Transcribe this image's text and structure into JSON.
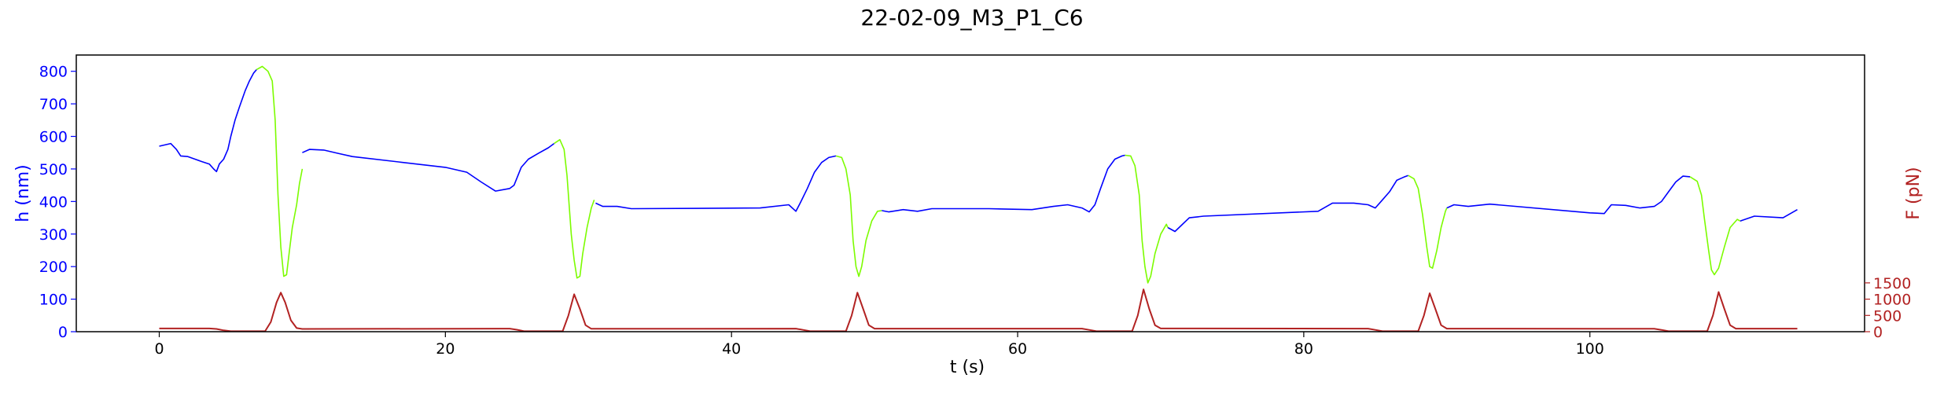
{
  "chart_data": {
    "type": "line",
    "title": "22-02-09_M3_P1_C6",
    "xlabel": "t (s)",
    "ylabel_left": "h (nm)",
    "ylabel_right": "F (pN)",
    "xlim": [
      -5.8,
      119.2
    ],
    "ylim_left": [
      0,
      850
    ],
    "ylim_right": [
      0,
      8500
    ],
    "x_ticks": [
      0,
      20,
      40,
      60,
      80,
      100
    ],
    "y_left_ticks": [
      0,
      100,
      200,
      300,
      400,
      500,
      600,
      700,
      800
    ],
    "y_right_ticks": [
      0,
      500,
      1000,
      1500
    ],
    "colors": {
      "height_series": "#0000ff",
      "compression_series": "#7cfc00",
      "force_series": "#b22222",
      "left_axis": "#0000ff",
      "right_axis": "#b22222"
    },
    "series": [
      {
        "color_key": "height_series",
        "axis": "left",
        "segments": [
          [
            [
              0,
              570
            ],
            [
              0.8,
              578
            ],
            [
              1.2,
              560
            ],
            [
              1.5,
              540
            ],
            [
              2.0,
              538
            ],
            [
              2.5,
              530
            ],
            [
              3.0,
              522
            ],
            [
              3.5,
              515
            ],
            [
              3.8,
              500
            ],
            [
              4.0,
              492
            ],
            [
              4.2,
              515
            ],
            [
              4.5,
              530
            ],
            [
              4.8,
              560
            ],
            [
              5.0,
              600
            ],
            [
              5.3,
              650
            ],
            [
              5.6,
              690
            ],
            [
              6.0,
              740
            ],
            [
              6.3,
              770
            ],
            [
              6.6,
              795
            ],
            [
              6.8,
              805
            ]
          ],
          [
            [
              10,
              550
            ],
            [
              10.5,
              560
            ],
            [
              11.5,
              558
            ],
            [
              12.5,
              548
            ],
            [
              13.5,
              538
            ],
            [
              20,
              505
            ],
            [
              21.5,
              490
            ],
            [
              22.5,
              460
            ],
            [
              23.5,
              432
            ],
            [
              24.5,
              440
            ],
            [
              24.8,
              450
            ],
            [
              25.3,
              505
            ],
            [
              25.8,
              530
            ],
            [
              26.5,
              548
            ],
            [
              27.2,
              565
            ],
            [
              27.6,
              578
            ]
          ],
          [
            [
              30.5,
              395
            ],
            [
              31,
              385
            ],
            [
              32,
              385
            ],
            [
              33,
              378
            ],
            [
              42,
              380
            ],
            [
              44,
              390
            ],
            [
              44.5,
              370
            ],
            [
              44.8,
              395
            ],
            [
              45.3,
              440
            ],
            [
              45.8,
              490
            ],
            [
              46.3,
              520
            ],
            [
              46.8,
              535
            ],
            [
              47.3,
              540
            ]
          ],
          [
            [
              50.5,
              372
            ],
            [
              51,
              368
            ],
            [
              52,
              375
            ],
            [
              53,
              370
            ],
            [
              54,
              378
            ],
            [
              58,
              378
            ],
            [
              61,
              375
            ],
            [
              62.5,
              385
            ],
            [
              63.5,
              390
            ],
            [
              64.5,
              380
            ],
            [
              65,
              368
            ],
            [
              65.4,
              390
            ],
            [
              65.8,
              440
            ],
            [
              66.3,
              500
            ],
            [
              66.8,
              530
            ],
            [
              67.3,
              540
            ],
            [
              67.5,
              542
            ]
          ],
          [
            [
              70.5,
              320
            ],
            [
              71,
              308
            ],
            [
              72,
              350
            ],
            [
              73,
              355
            ],
            [
              81,
              370
            ],
            [
              82,
              395
            ],
            [
              83.5,
              395
            ],
            [
              84.5,
              390
            ],
            [
              85,
              380
            ],
            [
              85.5,
              405
            ],
            [
              86,
              430
            ],
            [
              86.5,
              465
            ],
            [
              87,
              475
            ],
            [
              87.3,
              480
            ]
          ],
          [
            [
              90,
              380
            ],
            [
              90.5,
              390
            ],
            [
              91.5,
              385
            ],
            [
              93,
              392
            ],
            [
              100,
              365
            ],
            [
              101,
              363
            ],
            [
              101.5,
              390
            ],
            [
              102.5,
              388
            ],
            [
              103.5,
              380
            ],
            [
              104.5,
              385
            ],
            [
              105,
              400
            ],
            [
              105.5,
              430
            ],
            [
              106,
              460
            ],
            [
              106.5,
              478
            ],
            [
              107,
              476
            ]
          ],
          [
            [
              110.5,
              340
            ],
            [
              111.5,
              355
            ],
            [
              113.5,
              350
            ],
            [
              114.5,
              375
            ]
          ]
        ]
      },
      {
        "color_key": "compression_series",
        "axis": "left",
        "segments": [
          [
            [
              6.8,
              805
            ],
            [
              7.2,
              815
            ],
            [
              7.6,
              800
            ],
            [
              7.9,
              770
            ],
            [
              8.1,
              650
            ],
            [
              8.3,
              420
            ],
            [
              8.5,
              260
            ],
            [
              8.7,
              170
            ],
            [
              8.9,
              175
            ],
            [
              9.1,
              250
            ],
            [
              9.3,
              320
            ],
            [
              9.6,
              390
            ],
            [
              9.8,
              455
            ],
            [
              10,
              500
            ]
          ],
          [
            [
              27.6,
              578
            ],
            [
              28.0,
              590
            ],
            [
              28.3,
              560
            ],
            [
              28.5,
              480
            ],
            [
              28.8,
              300
            ],
            [
              29.0,
              220
            ],
            [
              29.2,
              165
            ],
            [
              29.4,
              170
            ],
            [
              29.6,
              240
            ],
            [
              29.9,
              320
            ],
            [
              30.2,
              380
            ],
            [
              30.4,
              405
            ]
          ],
          [
            [
              47.3,
              540
            ],
            [
              47.7,
              535
            ],
            [
              48.0,
              500
            ],
            [
              48.3,
              420
            ],
            [
              48.5,
              280
            ],
            [
              48.7,
              200
            ],
            [
              48.9,
              170
            ],
            [
              49.1,
              200
            ],
            [
              49.4,
              280
            ],
            [
              49.8,
              340
            ],
            [
              50.2,
              370
            ],
            [
              50.5,
              372
            ]
          ],
          [
            [
              67.5,
              542
            ],
            [
              67.9,
              540
            ],
            [
              68.2,
              510
            ],
            [
              68.5,
              420
            ],
            [
              68.7,
              280
            ],
            [
              68.9,
              200
            ],
            [
              69.1,
              150
            ],
            [
              69.3,
              170
            ],
            [
              69.6,
              240
            ],
            [
              70.0,
              300
            ],
            [
              70.4,
              330
            ],
            [
              70.5,
              320
            ]
          ],
          [
            [
              87.3,
              480
            ],
            [
              87.7,
              470
            ],
            [
              88.0,
              440
            ],
            [
              88.3,
              360
            ],
            [
              88.6,
              260
            ],
            [
              88.8,
              200
            ],
            [
              89.0,
              195
            ],
            [
              89.3,
              250
            ],
            [
              89.6,
              320
            ],
            [
              89.9,
              370
            ],
            [
              90.0,
              380
            ]
          ],
          [
            [
              107,
              476
            ],
            [
              107.5,
              462
            ],
            [
              107.8,
              420
            ],
            [
              108.0,
              350
            ],
            [
              108.3,
              250
            ],
            [
              108.5,
              190
            ],
            [
              108.7,
              175
            ],
            [
              109,
              195
            ],
            [
              109.4,
              260
            ],
            [
              109.8,
              320
            ],
            [
              110.3,
              345
            ],
            [
              110.5,
              340
            ]
          ]
        ]
      },
      {
        "color_key": "force_series",
        "axis": "right",
        "segments": [
          [
            [
              0,
              100
            ],
            [
              3.5,
              100
            ],
            [
              4.0,
              85
            ],
            [
              4.5,
              40
            ],
            [
              5,
              15
            ],
            [
              7.4,
              15
            ],
            [
              7.8,
              300
            ],
            [
              8.2,
              900
            ],
            [
              8.5,
              1200
            ],
            [
              8.8,
              900
            ],
            [
              9.2,
              350
            ],
            [
              9.6,
              110
            ],
            [
              10.0,
              85
            ],
            [
              24.5,
              95
            ],
            [
              25.0,
              60
            ],
            [
              25.5,
              15
            ],
            [
              28.2,
              15
            ],
            [
              28.6,
              500
            ],
            [
              29.0,
              1150
            ],
            [
              29.4,
              700
            ],
            [
              29.8,
              200
            ],
            [
              30.2,
              90
            ],
            [
              44.5,
              95
            ],
            [
              45.0,
              55
            ],
            [
              45.5,
              15
            ],
            [
              48.0,
              15
            ],
            [
              48.4,
              500
            ],
            [
              48.8,
              1200
            ],
            [
              49.2,
              700
            ],
            [
              49.6,
              200
            ],
            [
              50.0,
              95
            ],
            [
              64.5,
              95
            ],
            [
              65.0,
              55
            ],
            [
              65.5,
              15
            ],
            [
              68.0,
              15
            ],
            [
              68.4,
              500
            ],
            [
              68.8,
              1300
            ],
            [
              69.2,
              700
            ],
            [
              69.6,
              200
            ],
            [
              70.0,
              100
            ],
            [
              84.5,
              95
            ],
            [
              85.0,
              55
            ],
            [
              85.5,
              15
            ],
            [
              88.0,
              15
            ],
            [
              88.4,
              500
            ],
            [
              88.8,
              1180
            ],
            [
              89.2,
              700
            ],
            [
              89.6,
              200
            ],
            [
              90.0,
              95
            ],
            [
              104.5,
              90
            ],
            [
              105.0,
              55
            ],
            [
              105.5,
              15
            ],
            [
              108.2,
              15
            ],
            [
              108.6,
              500
            ],
            [
              109.0,
              1220
            ],
            [
              109.4,
              700
            ],
            [
              109.8,
              200
            ],
            [
              110.2,
              95
            ],
            [
              114.5,
              95
            ]
          ]
        ]
      }
    ]
  }
}
